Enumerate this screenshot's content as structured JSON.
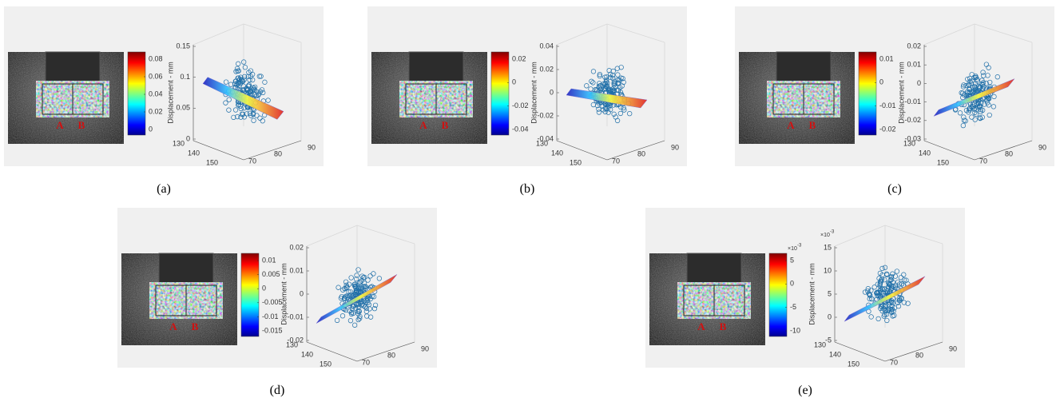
{
  "figure": {
    "panels": [
      {
        "caption": "(a)",
        "labels": [
          "A",
          "B"
        ],
        "colorbar": {
          "ticks": [
            "0.08",
            "0.06",
            "0.04",
            "0.02",
            "0"
          ]
        },
        "plot": {
          "zlabel": "Displacement - mm",
          "zticks": [
            "0.15",
            "0.1",
            "0.05",
            "0"
          ],
          "yticks": [
            "130",
            "140",
            "150"
          ],
          "xticks": [
            "70",
            "80",
            "90"
          ]
        }
      },
      {
        "caption": "(b)",
        "labels": [
          "A",
          "B"
        ],
        "colorbar": {
          "ticks": [
            "0.02",
            "0",
            "-0.02",
            "-0.04"
          ]
        },
        "plot": {
          "zlabel": "Displacement - mm",
          "zticks": [
            "0.04",
            "0.02",
            "0",
            "-0.02",
            "-0.04"
          ],
          "yticks": [
            "130",
            "140",
            "150"
          ],
          "xticks": [
            "70",
            "80",
            "90"
          ]
        }
      },
      {
        "caption": "(c)",
        "labels": [
          "A",
          "B"
        ],
        "colorbar": {
          "ticks": [
            "0.01",
            "0",
            "-0.01",
            "-0.02"
          ]
        },
        "plot": {
          "zlabel": "Displacement - mm",
          "zticks": [
            "0.02",
            "0.01",
            "0",
            "-0.01",
            "-0.02",
            "-0.03"
          ],
          "yticks": [
            "130",
            "140",
            "150"
          ],
          "xticks": [
            "70",
            "80",
            "90"
          ]
        }
      },
      {
        "caption": "(d)",
        "labels": [
          "A",
          "B"
        ],
        "colorbar": {
          "ticks": [
            "0.01",
            "0.005",
            "0",
            "-0.005",
            "-0.01",
            "-0.015"
          ]
        },
        "plot": {
          "zlabel": "Displacement - mm",
          "zticks": [
            "0.02",
            "0.01",
            "0",
            "-0.01",
            "-0.02"
          ],
          "yticks": [
            "130",
            "140",
            "150"
          ],
          "xticks": [
            "70",
            "80",
            "90"
          ]
        }
      },
      {
        "caption": "(e)",
        "labels": [
          "A",
          "B"
        ],
        "colorbar": {
          "ticks": [
            "5",
            "0",
            "-5",
            "-10"
          ],
          "multiplier": "×10",
          "exponent": "-3"
        },
        "plot": {
          "zlabel": "Displacement - mm",
          "zticks": [
            "15",
            "10",
            "5",
            "0",
            "-5"
          ],
          "multiplier": "×10",
          "exponent": "-3",
          "yticks": [
            "130",
            "140",
            "150"
          ],
          "xticks": [
            "70",
            "80",
            "90"
          ]
        }
      }
    ]
  }
}
